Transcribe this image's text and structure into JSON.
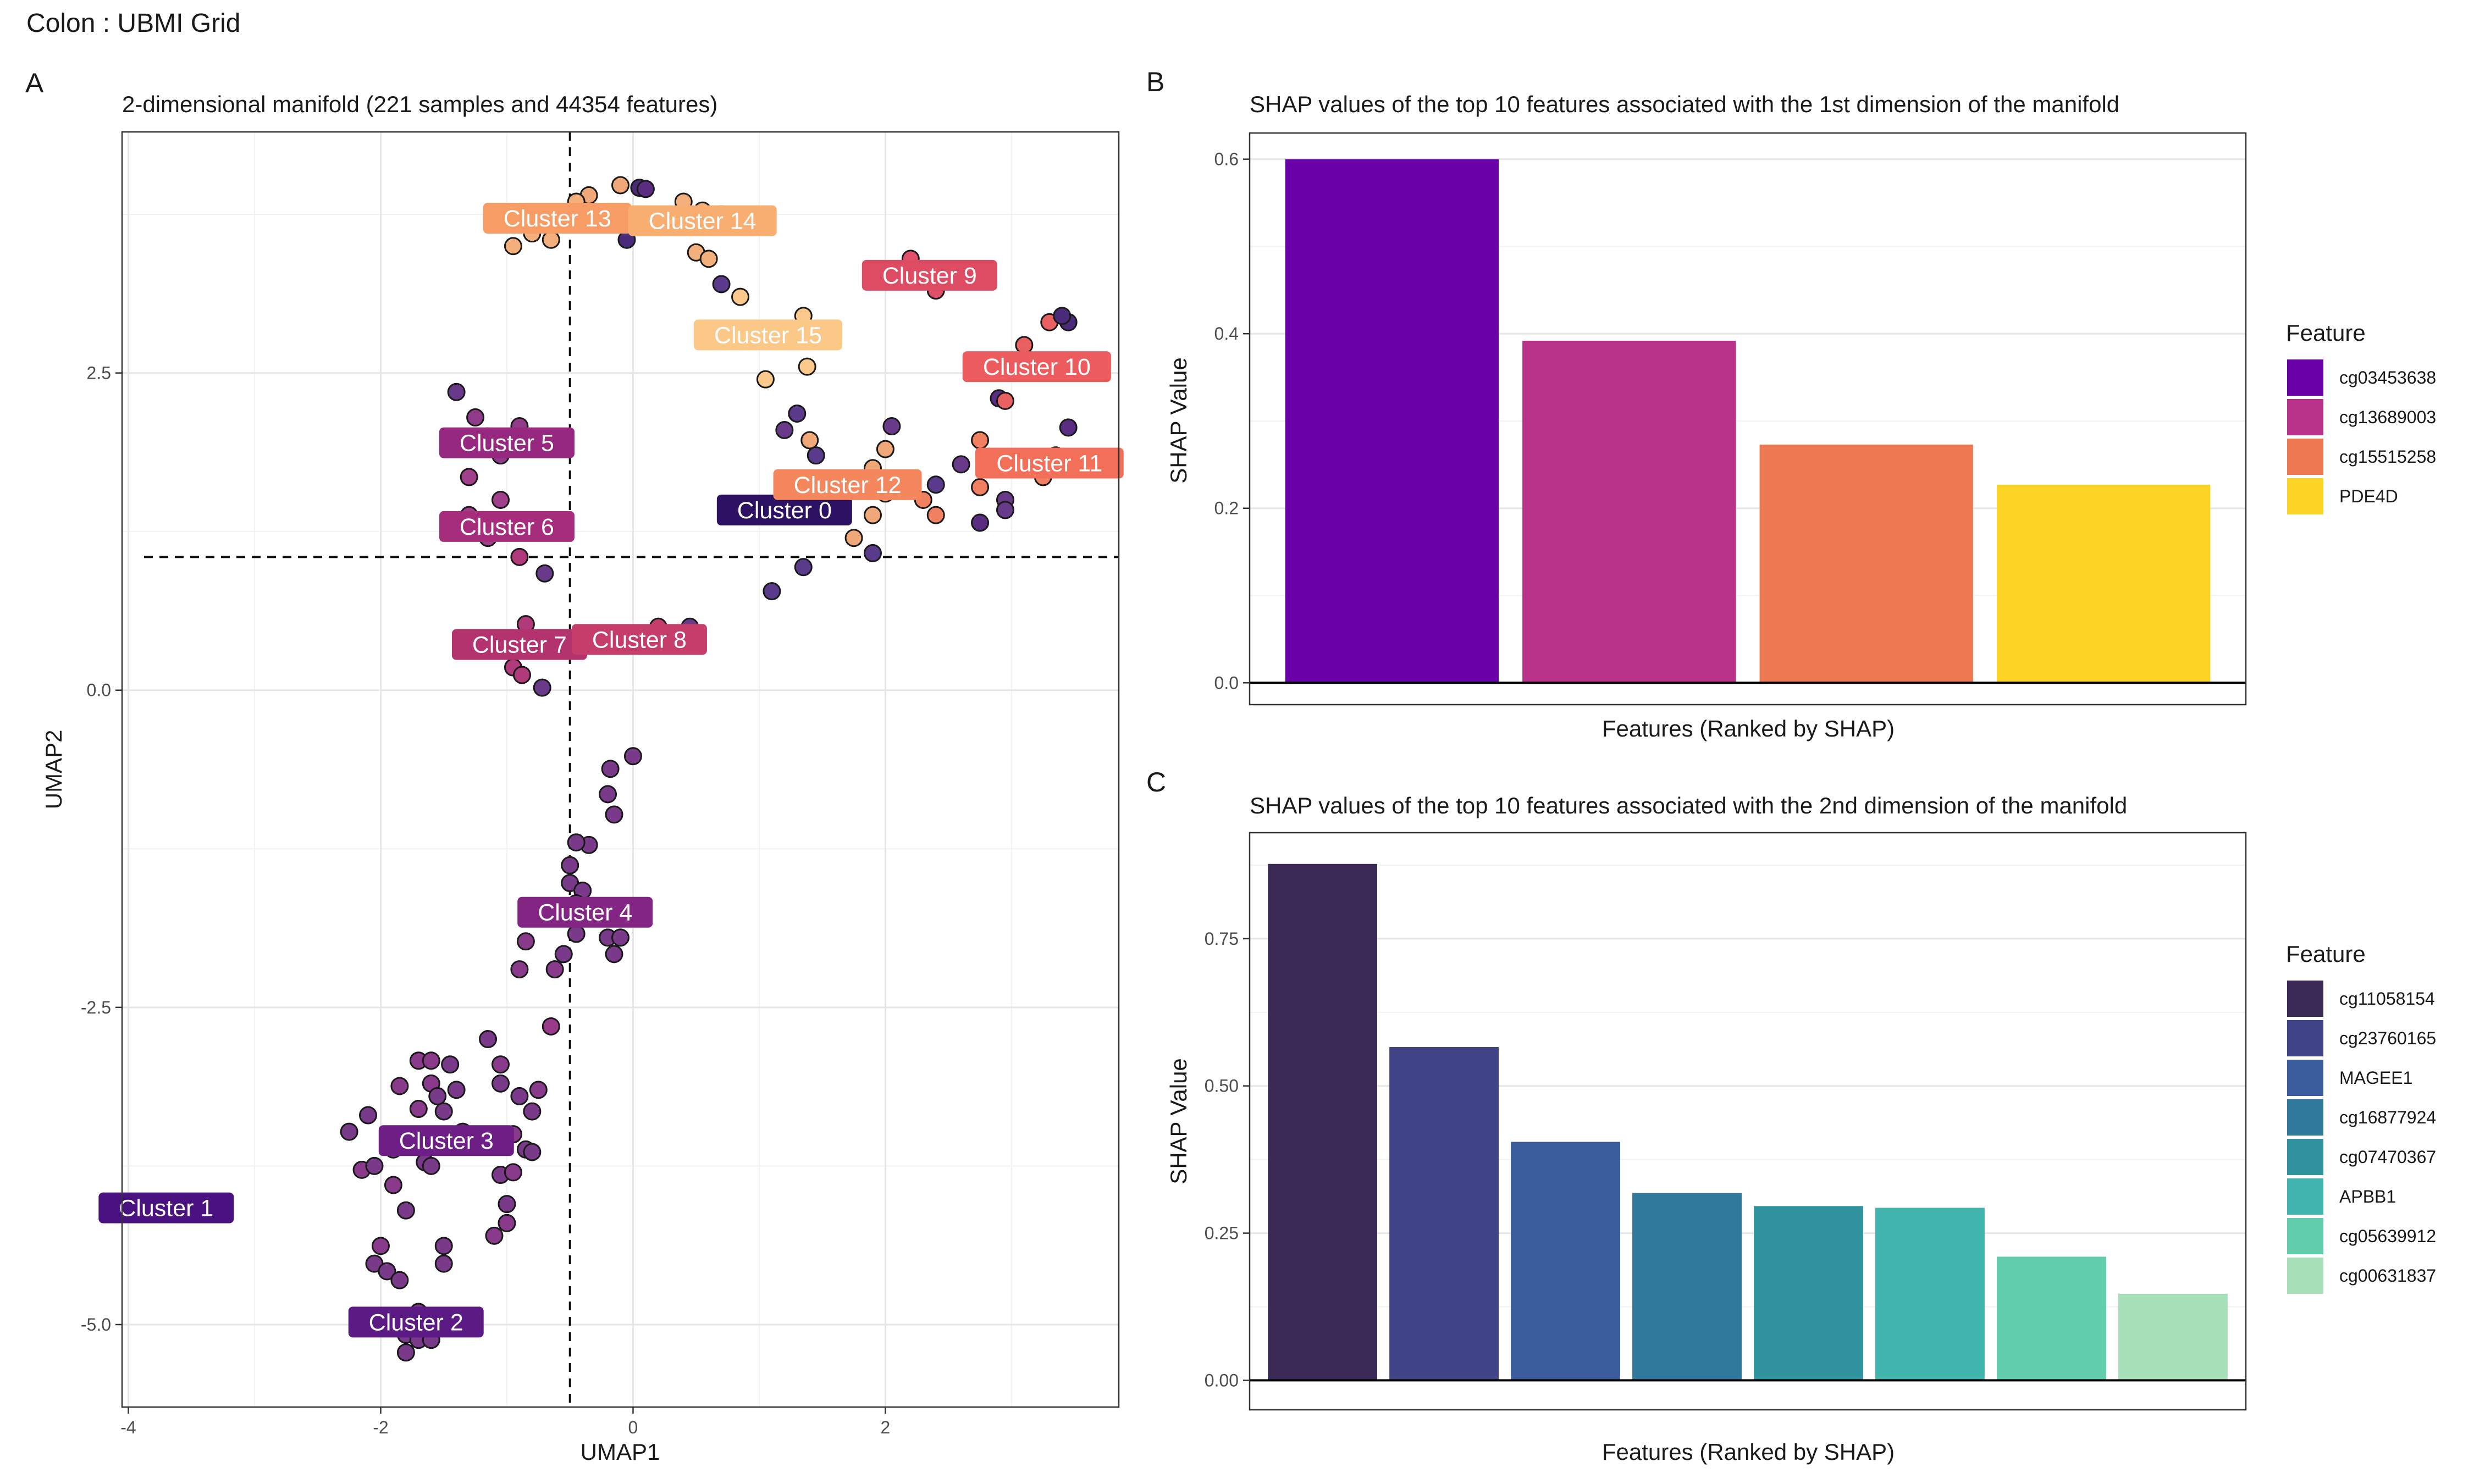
{
  "figure_title": "Colon : UBMI Grid",
  "chart_data": [
    {
      "panel": "A",
      "type": "scatter",
      "title": "2-dimensional manifold (221 samples and 44354 features)",
      "xlabel": "UMAP1",
      "ylabel": "UMAP2",
      "xlim": [
        -4.05,
        3.85
      ],
      "ylim": [
        -5.65,
        4.4
      ],
      "xticks": [
        -4,
        -2,
        0,
        2
      ],
      "xtick_labels": [
        "-4",
        "-2",
        "0",
        "2"
      ],
      "yticks": [
        -5,
        -2.5,
        0,
        2.5
      ],
      "ytick_labels": [
        "-5.0",
        "-2.5",
        "0.0",
        "2.5"
      ],
      "vline": -0.5,
      "hline": 1.05,
      "grid": true,
      "legend": "none",
      "points": [
        [
          -0.1,
          3.98,
          "#f0a878"
        ],
        [
          0.05,
          3.96,
          "#4a2a7a"
        ],
        [
          0.1,
          3.95,
          "#5a2d82"
        ],
        [
          -0.35,
          3.9,
          "#f0a878"
        ],
        [
          -0.45,
          3.85,
          "#f3b07c"
        ],
        [
          0.4,
          3.85,
          "#f3b07c"
        ],
        [
          0.55,
          3.78,
          "#f3b07c"
        ],
        [
          0.7,
          3.75,
          "#f3b07c"
        ],
        [
          0.3,
          3.72,
          "#f0a878"
        ],
        [
          -0.7,
          3.7,
          "#f3b07c"
        ],
        [
          -0.8,
          3.6,
          "#f3b07c"
        ],
        [
          -0.65,
          3.55,
          "#f3b07c"
        ],
        [
          -0.05,
          3.55,
          "#4a2a7a"
        ],
        [
          0.5,
          3.45,
          "#f3b07c"
        ],
        [
          0.6,
          3.4,
          "#f3b07c"
        ],
        [
          -0.95,
          3.5,
          "#f3b07c"
        ],
        [
          0.7,
          3.2,
          "#5a3a8a"
        ],
        [
          0.85,
          3.1,
          "#fbc98c"
        ],
        [
          2.2,
          3.4,
          "#e0506a"
        ],
        [
          2.4,
          3.15,
          "#e0506a"
        ],
        [
          1.35,
          2.95,
          "#fbc98c"
        ],
        [
          1.1,
          2.8,
          "#fbc98c"
        ],
        [
          1.05,
          2.45,
          "#fbc98c"
        ],
        [
          1.38,
          2.55,
          "#fbc98c"
        ],
        [
          3.3,
          2.9,
          "#e86060"
        ],
        [
          3.45,
          2.9,
          "#4a2a7a"
        ],
        [
          3.4,
          2.95,
          "#4a2a7a"
        ],
        [
          3.1,
          2.72,
          "#e86060"
        ],
        [
          3.2,
          2.55,
          "#e86060"
        ],
        [
          2.9,
          2.3,
          "#5a2d82"
        ],
        [
          2.95,
          2.28,
          "#e86060"
        ],
        [
          3.45,
          2.07,
          "#5a2d82"
        ],
        [
          2.75,
          1.97,
          "#f08060"
        ],
        [
          2.05,
          2.08,
          "#6a3a8a"
        ],
        [
          1.3,
          2.18,
          "#5a3a8a"
        ],
        [
          1.4,
          1.97,
          "#f0a878"
        ],
        [
          1.2,
          2.05,
          "#6a3a8a"
        ],
        [
          1.45,
          1.85,
          "#5a3a8a"
        ],
        [
          1.7,
          1.6,
          "#6a3a8a"
        ],
        [
          2.0,
          1.9,
          "#f0a878"
        ],
        [
          1.9,
          1.75,
          "#f0a878"
        ],
        [
          2.3,
          1.5,
          "#f08060"
        ],
        [
          2.4,
          1.62,
          "#5a3a8a"
        ],
        [
          2.6,
          1.78,
          "#6a3a8a"
        ],
        [
          2.75,
          1.6,
          "#f08060"
        ],
        [
          2.95,
          1.5,
          "#6a3a8a"
        ],
        [
          2.95,
          1.42,
          "#6a3a8a"
        ],
        [
          2.75,
          1.32,
          "#5a2d82"
        ],
        [
          2.4,
          1.38,
          "#f08060"
        ],
        [
          1.9,
          1.38,
          "#f0a878"
        ],
        [
          2.0,
          1.55,
          "#f0a878"
        ],
        [
          1.6,
          1.6,
          "#f0a878"
        ],
        [
          1.75,
          1.2,
          "#f0a878"
        ],
        [
          1.9,
          1.08,
          "#5a3a8a"
        ],
        [
          1.35,
          0.97,
          "#5a3a8a"
        ],
        [
          1.1,
          0.78,
          "#5a3a8a"
        ],
        [
          3.25,
          1.68,
          "#f08060"
        ],
        [
          3.35,
          1.85,
          "#f08060"
        ],
        [
          -1.4,
          2.35,
          "#6a3a8a"
        ],
        [
          -1.25,
          2.15,
          "#903a8a"
        ],
        [
          -1.15,
          2.0,
          "#903a8a"
        ],
        [
          -0.9,
          2.08,
          "#903a8a"
        ],
        [
          -1.05,
          1.85,
          "#903a8a"
        ],
        [
          -1.3,
          1.68,
          "#a0408a"
        ],
        [
          -1.05,
          1.5,
          "#a0408a"
        ],
        [
          -1.3,
          1.38,
          "#a0408a"
        ],
        [
          -1.15,
          1.2,
          "#a0408a"
        ],
        [
          -0.9,
          1.05,
          "#b03a7a"
        ],
        [
          -0.7,
          0.92,
          "#6a3a8a"
        ],
        [
          -0.85,
          0.52,
          "#b03a7a"
        ],
        [
          -0.95,
          0.18,
          "#b03a7a"
        ],
        [
          -0.88,
          0.12,
          "#b03a7a"
        ],
        [
          -0.72,
          0.02,
          "#6a3a8a"
        ],
        [
          0.2,
          0.5,
          "#c0406a"
        ],
        [
          0.45,
          0.5,
          "#6a3a8a"
        ],
        [
          0.0,
          -0.52,
          "#7a3a8a"
        ],
        [
          -0.18,
          -0.62,
          "#7a3a8a"
        ],
        [
          -0.2,
          -0.82,
          "#7a3a8a"
        ],
        [
          -0.15,
          -0.98,
          "#7a3a8a"
        ],
        [
          -0.35,
          -1.22,
          "#7a3a8a"
        ],
        [
          -0.45,
          -1.2,
          "#7a3a8a"
        ],
        [
          -0.5,
          -1.38,
          "#7a3a8a"
        ],
        [
          -0.5,
          -1.52,
          "#7a3a8a"
        ],
        [
          -0.4,
          -1.58,
          "#7a3a8a"
        ],
        [
          -0.45,
          -1.68,
          "#7a3a8a"
        ],
        [
          -0.25,
          -1.72,
          "#7a3a8a"
        ],
        [
          -0.2,
          -1.95,
          "#7a3a8a"
        ],
        [
          -0.1,
          -1.95,
          "#7a3a8a"
        ],
        [
          -0.45,
          -1.92,
          "#7a3a8a"
        ],
        [
          -0.55,
          -2.08,
          "#7a3a8a"
        ],
        [
          -0.15,
          -2.08,
          "#7a3a8a"
        ],
        [
          -0.85,
          -1.98,
          "#8a3a8a"
        ],
        [
          -0.9,
          -2.2,
          "#8a3a8a"
        ],
        [
          -0.62,
          -2.2,
          "#8a3a8a"
        ],
        [
          -0.65,
          -2.65,
          "#9a3a8a"
        ],
        [
          -1.15,
          -2.75,
          "#7a3a8a"
        ],
        [
          -1.7,
          -2.92,
          "#8a3a8a"
        ],
        [
          -1.6,
          -2.92,
          "#8a3a8a"
        ],
        [
          -1.45,
          -2.95,
          "#7a3a8a"
        ],
        [
          -1.05,
          -2.95,
          "#8a3a8a"
        ],
        [
          -1.6,
          -3.1,
          "#8a3a8a"
        ],
        [
          -1.85,
          -3.12,
          "#8a3a8a"
        ],
        [
          -1.55,
          -3.2,
          "#7a3a8a"
        ],
        [
          -1.4,
          -3.15,
          "#7a3a8a"
        ],
        [
          -1.05,
          -3.1,
          "#7a3a8a"
        ],
        [
          -0.9,
          -3.2,
          "#7a3a8a"
        ],
        [
          -0.75,
          -3.15,
          "#8a3a8a"
        ],
        [
          -0.8,
          -3.32,
          "#7a3a8a"
        ],
        [
          -2.1,
          -3.35,
          "#7a3a8a"
        ],
        [
          -1.7,
          -3.3,
          "#8a3a8a"
        ],
        [
          -1.5,
          -3.32,
          "#7a3a8a"
        ],
        [
          -1.35,
          -3.48,
          "#7a3a8a"
        ],
        [
          -2.25,
          -3.48,
          "#7a3a8a"
        ],
        [
          -1.9,
          -3.62,
          "#8a3a8a"
        ],
        [
          -1.2,
          -3.55,
          "#7a3a8a"
        ],
        [
          -0.95,
          -3.5,
          "#8a3a8a"
        ],
        [
          -0.85,
          -3.62,
          "#7a3a8a"
        ],
        [
          -0.8,
          -3.64,
          "#7a3a8a"
        ],
        [
          -1.65,
          -3.72,
          "#7a3a8a"
        ],
        [
          -1.6,
          -3.75,
          "#7a3a8a"
        ],
        [
          -2.15,
          -3.78,
          "#8a3a8a"
        ],
        [
          -2.05,
          -3.75,
          "#7a3a8a"
        ],
        [
          -1.05,
          -3.82,
          "#7a3a8a"
        ],
        [
          -0.95,
          -3.8,
          "#8a3a8a"
        ],
        [
          -1.9,
          -3.9,
          "#8a3a8a"
        ],
        [
          -1.0,
          -4.05,
          "#7a3a8a"
        ],
        [
          -1.8,
          -4.1,
          "#7a3a8a"
        ],
        [
          -1.0,
          -4.2,
          "#8a3a8a"
        ],
        [
          -1.1,
          -4.3,
          "#8a3a8a"
        ],
        [
          -2.0,
          -4.38,
          "#8a3a8a"
        ],
        [
          -1.5,
          -4.38,
          "#7a3a8a"
        ],
        [
          -2.05,
          -4.52,
          "#7a3a8a"
        ],
        [
          -1.95,
          -4.58,
          "#7a3a8a"
        ],
        [
          -1.85,
          -4.65,
          "#7a3a8a"
        ],
        [
          -1.5,
          -4.52,
          "#7a3a8a"
        ],
        [
          -1.7,
          -4.9,
          "#7a3a8a"
        ],
        [
          -1.6,
          -4.95,
          "#7a3a8a"
        ],
        [
          -1.8,
          -5.08,
          "#7a3a8a"
        ],
        [
          -1.7,
          -5.12,
          "#7a3a8a"
        ],
        [
          -1.6,
          -5.12,
          "#7a3a8a"
        ],
        [
          -1.8,
          -5.22,
          "#7a3a8a"
        ]
      ],
      "annotations": [
        {
          "text": "Cluster 0",
          "x": 1.2,
          "y": 1.42,
          "color": "#2d1263"
        },
        {
          "text": "Cluster 1",
          "x": -3.7,
          "y": -4.08,
          "color": "#4a1280"
        },
        {
          "text": "Cluster 2",
          "x": -1.72,
          "y": -4.98,
          "color": "#5b1a84"
        },
        {
          "text": "Cluster 3",
          "x": -1.48,
          "y": -3.55,
          "color": "#6e1f86"
        },
        {
          "text": "Cluster 4",
          "x": -0.38,
          "y": -1.75,
          "color": "#832683"
        },
        {
          "text": "Cluster 5",
          "x": -1.0,
          "y": 1.95,
          "color": "#97287f"
        },
        {
          "text": "Cluster 6",
          "x": -1.0,
          "y": 1.29,
          "color": "#a52d7c"
        },
        {
          "text": "Cluster 7",
          "x": -0.9,
          "y": 0.36,
          "color": "#b3336f"
        },
        {
          "text": "Cluster 8",
          "x": 0.05,
          "y": 0.4,
          "color": "#c53d6a"
        },
        {
          "text": "Cluster 9",
          "x": 2.35,
          "y": 3.27,
          "color": "#de4c64"
        },
        {
          "text": "Cluster 10",
          "x": 3.2,
          "y": 2.55,
          "color": "#ec5b5d"
        },
        {
          "text": "Cluster 11",
          "x": 3.3,
          "y": 1.79,
          "color": "#f2705a"
        },
        {
          "text": "Cluster 12",
          "x": 1.7,
          "y": 1.62,
          "color": "#f5875e"
        },
        {
          "text": "Cluster 13",
          "x": -0.6,
          "y": 3.72,
          "color": "#f89c66"
        },
        {
          "text": "Cluster 14",
          "x": 0.55,
          "y": 3.7,
          "color": "#f9ae71"
        },
        {
          "text": "Cluster 15",
          "x": 1.07,
          "y": 2.8,
          "color": "#fbc887"
        }
      ]
    },
    {
      "panel": "B",
      "type": "bar",
      "title": "SHAP values of the top 10 features associated with the 1st dimension of the manifold",
      "xlabel": "Features (Ranked by SHAP)",
      "ylabel": "SHAP Value",
      "ylim": [
        -0.025,
        0.63
      ],
      "yticks": [
        0,
        0.2,
        0.4,
        0.6
      ],
      "ytick_labels": [
        "0.0",
        "0.2",
        "0.4",
        "0.6"
      ],
      "categories": [
        "cg03453638",
        "cg13689003",
        "cg15515258",
        "PDE4D"
      ],
      "values": [
        0.6,
        0.392,
        0.273,
        0.227
      ],
      "colors": [
        "#6a00a8",
        "#b83289",
        "#ed7953",
        "#fbd324"
      ],
      "legend_title": "Feature",
      "legend": "right"
    },
    {
      "panel": "C",
      "type": "bar",
      "title": "SHAP values of the top 10 features associated with the 2nd dimension of the manifold",
      "xlabel": "Features (Ranked by SHAP)",
      "ylabel": "SHAP Value",
      "ylim": [
        -0.05,
        0.93
      ],
      "yticks": [
        0,
        0.25,
        0.5,
        0.75
      ],
      "ytick_labels": [
        "0.00",
        "0.25",
        "0.50",
        "0.75"
      ],
      "categories": [
        "cg11058154",
        "cg23760165",
        "MAGEE1",
        "cg16877924",
        "cg07470367",
        "APBB1",
        "cg05639912",
        "cg00631837"
      ],
      "values": [
        0.877,
        0.566,
        0.405,
        0.318,
        0.296,
        0.293,
        0.21,
        0.147
      ],
      "colors": [
        "#3b2a55",
        "#414487",
        "#3a5c9c",
        "#31799c",
        "#30939e",
        "#41b5ad",
        "#62cdaa",
        "#a5e0b9"
      ],
      "legend_title": "Feature",
      "legend": "right"
    }
  ]
}
